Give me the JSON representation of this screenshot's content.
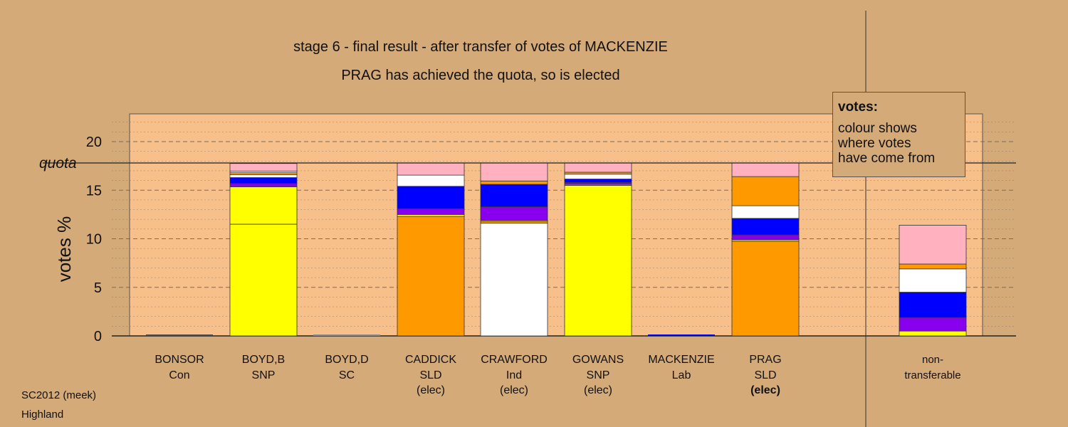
{
  "chart_data": {
    "type": "bar",
    "stacked": true,
    "title": "stage 6 - final result - after transfer of votes of MACKENZIE",
    "subtitle": "PRAG has achieved the quota, so is elected",
    "ylabel": "votes %",
    "ylim": [
      0,
      23
    ],
    "yticks": [
      0,
      5,
      10,
      15,
      20
    ],
    "quota_label": "quota",
    "quota_value": 17.8,
    "legend": {
      "heading": "votes:",
      "lines": [
        "colour shows",
        "where votes",
        "have come from"
      ],
      "placement": "top-right"
    },
    "colors": {
      "Con": "#4a4a4a",
      "SNP": "#ffff00",
      "SC": "#8a8a8a",
      "SLD": "#ff9900",
      "Ind": "#ffffff",
      "Indb": "#8800ee",
      "Lab": "#0000ff",
      "Other": "#ffb1c0",
      "background": "#d4aa78",
      "plot": "#f7bf8a"
    },
    "candidates": [
      {
        "name": "BONSOR",
        "party": "Con",
        "status": "",
        "segments": []
      },
      {
        "name": "BOYD,B",
        "party": "SNP",
        "status": "",
        "segments": [
          {
            "source": "SNP",
            "value": 11.5
          },
          {
            "source": "SNP",
            "value": 3.85
          },
          {
            "source": "Indb",
            "value": 0.35
          },
          {
            "source": "Lab",
            "value": 0.6
          },
          {
            "source": "Ind",
            "value": 0.3
          },
          {
            "source": "SLD",
            "value": 0.2
          },
          {
            "source": "Ind",
            "value": 0.15
          },
          {
            "source": "Other",
            "value": 0.8
          }
        ]
      },
      {
        "name": "BOYD,D",
        "party": "SC",
        "status": "",
        "segments": []
      },
      {
        "name": "CADDICK",
        "party": "SLD",
        "status": "(elec)",
        "segments": [
          {
            "source": "SLD",
            "value": 12.3
          },
          {
            "source": "SNP",
            "value": 0.2
          },
          {
            "source": "Indb",
            "value": 0.6
          },
          {
            "source": "Lab",
            "value": 2.3
          },
          {
            "source": "Ind",
            "value": 1.15
          },
          {
            "source": "Other",
            "value": 1.25
          }
        ]
      },
      {
        "name": "CRAWFORD",
        "party": "Ind",
        "status": "(elec)",
        "segments": [
          {
            "source": "Ind",
            "value": 11.6
          },
          {
            "source": "SLD",
            "value": 0.2
          },
          {
            "source": "SNP",
            "value": 0.1
          },
          {
            "source": "Indb",
            "value": 1.4
          },
          {
            "source": "Lab",
            "value": 2.3
          },
          {
            "source": "SLD",
            "value": 0.35
          },
          {
            "source": "Other",
            "value": 1.85
          }
        ]
      },
      {
        "name": "GOWANS",
        "party": "SNP",
        "status": "(elec)",
        "segments": [
          {
            "source": "SNP",
            "value": 15.5
          },
          {
            "source": "SLD",
            "value": 0.1
          },
          {
            "source": "Indb",
            "value": 0.2
          },
          {
            "source": "Lab",
            "value": 0.35
          },
          {
            "source": "Ind",
            "value": 0.5
          },
          {
            "source": "SLD",
            "value": 0.2
          },
          {
            "source": "Other",
            "value": 0.95
          }
        ]
      },
      {
        "name": "MACKENZIE",
        "party": "Lab",
        "status": "",
        "segments": []
      },
      {
        "name": "PRAG",
        "party": "SLD",
        "status": "(elec)",
        "segments": [
          {
            "source": "SLD",
            "value": 9.75
          },
          {
            "source": "SNP",
            "value": 0.15
          },
          {
            "source": "Indb",
            "value": 0.5
          },
          {
            "source": "Lab",
            "value": 1.7
          },
          {
            "source": "Ind",
            "value": 1.3
          },
          {
            "source": "SLD",
            "value": 3.0
          },
          {
            "source": "Other",
            "value": 1.4
          }
        ]
      }
    ],
    "nontransferable": {
      "line1": "non-",
      "line2": "transferable",
      "segments": [
        {
          "source": "SNP",
          "value": 0.5
        },
        {
          "source": "Indb",
          "value": 1.4
        },
        {
          "source": "Lab",
          "value": 2.6
        },
        {
          "source": "Ind",
          "value": 2.4
        },
        {
          "source": "SLD",
          "value": 0.5
        },
        {
          "source": "Other",
          "value": 4.0
        }
      ]
    }
  },
  "footer": {
    "source": "SC2012 (meek)",
    "region": "Highland"
  }
}
